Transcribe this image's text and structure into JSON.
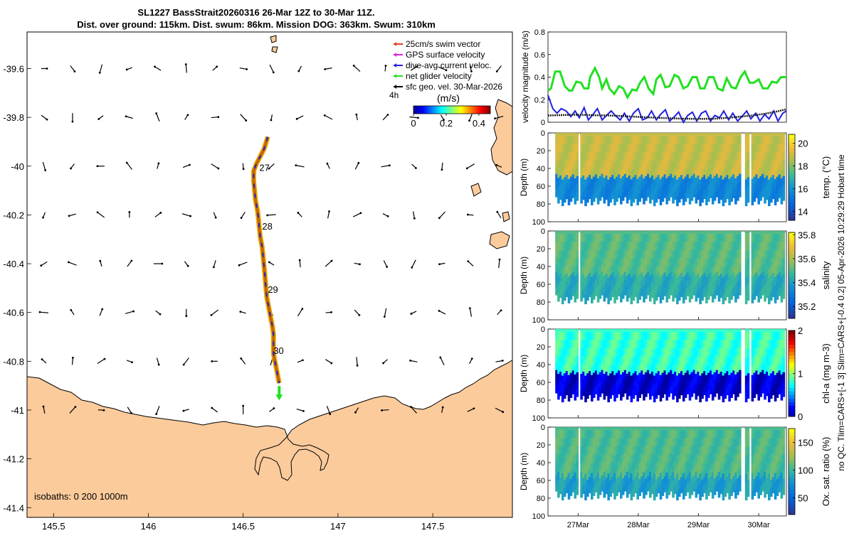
{
  "title": {
    "line1": "SL1227 BassStrait20260316 26-Mar 12Z to 30-Mar 11Z.",
    "line2": "Dist. over ground: 115km. Dist. swum: 86km. Mission DOG: 363km. Swum: 310km"
  },
  "side_caption": "no QC. Tlim=CARS+[-1 3] Slim=CARS+[-0.4 0.2] 05-Apr-2026 10:29:29 Hobart time",
  "colors": {
    "land": "#fbcb9c",
    "speed_green": "#22e022",
    "speed_blue": "#2020e0",
    "speed_black": "#222222"
  },
  "map": {
    "lon_ticks": [
      "145.5",
      "146",
      "146.5",
      "147",
      "147.5"
    ],
    "lon_values": [
      145.5,
      146,
      146.5,
      147,
      147.5
    ],
    "lat_ticks": [
      "-39.6",
      "-39.8",
      "-40",
      "-40.2",
      "-40.4",
      "-40.6",
      "-40.8",
      "-41",
      "-41.2",
      "-41.4"
    ],
    "lat_values": [
      -39.6,
      -39.8,
      -40,
      -40.2,
      -40.4,
      -40.6,
      -40.8,
      -41,
      -41.2,
      -41.4
    ],
    "lon_range": [
      145.36,
      147.92
    ],
    "lat_range": [
      -41.44,
      -39.45
    ],
    "isobaths_label": "isobaths: 0   200  1000m",
    "legend": [
      {
        "label": "25cm/s swim vector",
        "color": "#e04020"
      },
      {
        "label": "GPS surface velocity",
        "color": "#e020e0"
      },
      {
        "label": "dive-avg current veloc.",
        "color": "#2020e0"
      },
      {
        "label": "net glider velocity",
        "color": "#22e022"
      },
      {
        "label": "sfc geo. vel. 30-Mar-2026",
        "color": "#000000"
      }
    ],
    "legend_extra": "4h",
    "colorbar_title": "(m/s)",
    "colorbar_ticks": [
      "0",
      "0.2",
      "0.4"
    ],
    "colorbar_values": [
      0,
      0.2,
      0.4
    ],
    "colorbar_range": [
      0,
      0.47
    ],
    "day_labels": [
      {
        "label": "27",
        "lon": 146.585,
        "lat": -40.02
      },
      {
        "label": "28",
        "lon": 146.6,
        "lat": -40.26
      },
      {
        "label": "29",
        "lon": 146.63,
        "lat": -40.52
      },
      {
        "label": "30",
        "lon": 146.66,
        "lat": -40.77
      }
    ],
    "track": [
      [
        146.63,
        -39.88
      ],
      [
        146.61,
        -39.93
      ],
      [
        146.59,
        -39.96
      ],
      [
        146.57,
        -39.99
      ],
      [
        146.555,
        -40.02
      ],
      [
        146.555,
        -40.06
      ],
      [
        146.56,
        -40.1
      ],
      [
        146.565,
        -40.14
      ],
      [
        146.575,
        -40.18
      ],
      [
        146.58,
        -40.21
      ],
      [
        146.585,
        -40.25
      ],
      [
        146.59,
        -40.29
      ],
      [
        146.6,
        -40.33
      ],
      [
        146.605,
        -40.37
      ],
      [
        146.61,
        -40.41
      ],
      [
        146.615,
        -40.45
      ],
      [
        146.62,
        -40.5
      ],
      [
        146.625,
        -40.54
      ],
      [
        146.635,
        -40.58
      ],
      [
        146.645,
        -40.62
      ],
      [
        146.655,
        -40.66
      ],
      [
        146.66,
        -40.69
      ],
      [
        146.66,
        -40.73
      ],
      [
        146.66,
        -40.77
      ],
      [
        146.67,
        -40.81
      ],
      [
        146.68,
        -40.85
      ],
      [
        146.69,
        -40.89
      ]
    ],
    "vector_lons": [
      145.45,
      145.6,
      145.75,
      145.9,
      146.05,
      146.2,
      146.35,
      146.5,
      146.65,
      146.8,
      146.95,
      147.1,
      147.25,
      147.4,
      147.55,
      147.7,
      147.85
    ],
    "vector_lats": [
      -39.6,
      -39.8,
      -40.0,
      -40.2,
      -40.4,
      -40.6,
      -40.8,
      -41.0
    ]
  },
  "speed_chart": {
    "type": "line",
    "ylabel": "velocity magnitude (m/s)",
    "y_ticks": [
      "0",
      "0.2",
      "0.4",
      "0.6",
      "0.8"
    ],
    "y_values": [
      0,
      0.2,
      0.4,
      0.6,
      0.8
    ],
    "ylim": [
      0,
      0.8
    ],
    "xlim": [
      26.5,
      30.46
    ],
    "series": [
      {
        "name": "net glider velocity",
        "color": "#22e022",
        "x": [
          26.5,
          26.55,
          26.62,
          26.7,
          26.78,
          26.85,
          26.9,
          26.97,
          27.05,
          27.1,
          27.17,
          27.2,
          27.28,
          27.35,
          27.4,
          27.47,
          27.52,
          27.6,
          27.68,
          27.75,
          27.82,
          27.9,
          27.97,
          28.03,
          28.1,
          28.17,
          28.25,
          28.3,
          28.37,
          28.45,
          28.52,
          28.6,
          28.67,
          28.75,
          28.82,
          28.9,
          28.97,
          29.03,
          29.1,
          29.17,
          29.25,
          29.32,
          29.4,
          29.47,
          29.55,
          29.62,
          29.7,
          29.77,
          29.85,
          29.92,
          30.0,
          30.07,
          30.15,
          30.22,
          30.3,
          30.37,
          30.46
        ],
        "y": [
          0.28,
          0.3,
          0.45,
          0.45,
          0.32,
          0.28,
          0.28,
          0.36,
          0.35,
          0.3,
          0.3,
          0.4,
          0.48,
          0.4,
          0.3,
          0.38,
          0.3,
          0.25,
          0.32,
          0.3,
          0.22,
          0.29,
          0.28,
          0.35,
          0.4,
          0.3,
          0.25,
          0.38,
          0.42,
          0.31,
          0.32,
          0.42,
          0.4,
          0.3,
          0.32,
          0.4,
          0.4,
          0.3,
          0.3,
          0.4,
          0.4,
          0.3,
          0.28,
          0.39,
          0.31,
          0.3,
          0.4,
          0.45,
          0.35,
          0.35,
          0.38,
          0.3,
          0.3,
          0.36,
          0.35,
          0.4,
          0.4
        ]
      },
      {
        "name": "dive-avg current veloc.",
        "color": "#2020e0",
        "x": [
          26.5,
          26.58,
          26.65,
          26.72,
          26.8,
          26.88,
          26.95,
          27.02,
          27.1,
          27.17,
          27.25,
          27.32,
          27.4,
          27.47,
          27.55,
          27.62,
          27.7,
          27.77,
          27.85,
          27.92,
          28.0,
          28.07,
          28.15,
          28.22,
          28.3,
          28.37,
          28.45,
          28.52,
          28.6,
          28.67,
          28.75,
          28.82,
          28.9,
          28.97,
          29.05,
          29.12,
          29.2,
          29.27,
          29.35,
          29.42,
          29.5,
          29.57,
          29.65,
          29.72,
          29.8,
          29.87,
          29.95,
          30.02,
          30.1,
          30.17,
          30.25,
          30.32,
          30.4,
          30.46
        ],
        "y": [
          0.24,
          0.12,
          0.08,
          0.12,
          0.1,
          0.05,
          0.1,
          0.04,
          0.13,
          0.02,
          0.07,
          0.12,
          0.02,
          0.06,
          0.1,
          0.06,
          0.02,
          0.08,
          0.01,
          0.08,
          0.12,
          0.02,
          0.04,
          0.1,
          0.02,
          0.07,
          0.11,
          0.01,
          0.05,
          0.09,
          0.0,
          0.06,
          0.09,
          0.01,
          0.08,
          0.1,
          0.01,
          0.06,
          0.04,
          0.1,
          0.02,
          0.08,
          0.01,
          0.05,
          0.1,
          0.03,
          0.08,
          0.01,
          0.07,
          0.03,
          0.1,
          0.01,
          0.08,
          0.1
        ]
      },
      {
        "name": "sfc geo. vel.",
        "color": "#222222",
        "x": [
          26.5,
          26.7,
          26.9,
          27.1,
          27.3,
          27.5,
          27.7,
          27.9,
          28.1,
          28.3,
          28.5,
          28.7,
          28.9,
          29.1,
          29.3,
          29.5,
          29.7,
          29.9,
          30.1,
          30.3,
          30.46
        ],
        "y": [
          0.06,
          0.063,
          0.066,
          0.065,
          0.062,
          0.06,
          0.056,
          0.05,
          0.045,
          0.04,
          0.036,
          0.032,
          0.03,
          0.03,
          0.032,
          0.04,
          0.05,
          0.06,
          0.075,
          0.095,
          0.115
        ]
      }
    ]
  },
  "x_axis": {
    "ticks": [
      "27Mar",
      "28Mar",
      "29Mar",
      "30Mar"
    ],
    "values": [
      27,
      28,
      29,
      30
    ],
    "range": [
      26.5,
      30.46
    ]
  },
  "profile_panels": [
    {
      "ylabel": "Depth (m)",
      "cbar_label": "temp. (°C)",
      "colormap": "parula",
      "cbar_ticks": [
        "14",
        "16",
        "18",
        "20"
      ],
      "cbar_values": [
        14,
        16,
        18,
        20
      ],
      "clim": [
        13.2,
        20.8
      ],
      "depth_ticks": [
        "0",
        "20",
        "40",
        "60",
        "80",
        "100"
      ],
      "depth_values": [
        0,
        20,
        40,
        60,
        80,
        100
      ],
      "profile": {
        "surface": 19.0,
        "deep": 15.8,
        "transition_depth": 48
      }
    },
    {
      "ylabel": "Depth (m)",
      "cbar_label": "salinity",
      "colormap": "parula",
      "cbar_ticks": [
        "35.2",
        "35.4",
        "35.6",
        "35.8"
      ],
      "cbar_values": [
        35.2,
        35.4,
        35.6,
        35.8
      ],
      "clim": [
        35.1,
        35.82
      ],
      "depth_ticks": [
        "0",
        "20",
        "40",
        "60",
        "80",
        "100"
      ],
      "depth_values": [
        0,
        20,
        40,
        60,
        80,
        100
      ],
      "profile": {
        "surface": 35.52,
        "deep": 35.45,
        "transition_depth": 50
      }
    },
    {
      "ylabel": "Depth (m)",
      "cbar_label": "chl-a (mg m-3)",
      "colormap": "jet",
      "cbar_ticks": [
        "0",
        "1",
        "2"
      ],
      "cbar_values": [
        0,
        1,
        2
      ],
      "clim": [
        0,
        2
      ],
      "depth_ticks": [
        "0",
        "20",
        "40",
        "60",
        "80",
        "100"
      ],
      "depth_values": [
        0,
        20,
        40,
        60,
        80,
        100
      ],
      "profile": {
        "surface": 0.85,
        "deep": 0.15,
        "transition_depth": 50
      }
    },
    {
      "ylabel": "Depth (m)",
      "cbar_label": "Ox. sat. ratio (%)",
      "colormap": "parula",
      "cbar_ticks": [
        "50",
        "100",
        "150"
      ],
      "cbar_values": [
        50,
        100,
        150
      ],
      "clim": [
        20,
        175
      ],
      "depth_ticks": [
        "0",
        "20",
        "40",
        "60",
        "80",
        "100"
      ],
      "depth_values": [
        0,
        20,
        40,
        60,
        80,
        100
      ],
      "profile": {
        "surface": 108,
        "deep": 88,
        "transition_depth": 55
      }
    }
  ]
}
